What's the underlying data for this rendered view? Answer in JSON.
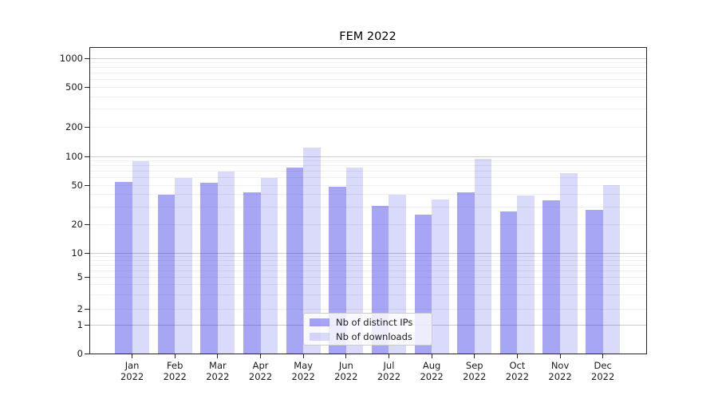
{
  "title": "FEM 2022",
  "legend": {
    "items": [
      {
        "label": "Nb of distinct IPs",
        "color": "rgba(22,22,230,0.38)"
      },
      {
        "label": "Nb of downloads",
        "color": "rgba(22,22,230,0.16)"
      }
    ],
    "position": "lower center"
  },
  "chart_data": {
    "type": "bar",
    "title": "FEM 2022",
    "categories": [
      "Jan 2022",
      "Feb 2022",
      "Mar 2022",
      "Apr 2022",
      "May 2022",
      "Jun 2022",
      "Jul 2022",
      "Aug 2022",
      "Sep 2022",
      "Oct 2022",
      "Nov 2022",
      "Dec 2022"
    ],
    "x_tick_months": [
      "Jan",
      "Feb",
      "Mar",
      "Apr",
      "May",
      "Jun",
      "Jul",
      "Aug",
      "Sep",
      "Oct",
      "Nov",
      "Dec"
    ],
    "x_tick_year": "2022",
    "series": [
      {
        "name": "Nb of distinct IPs",
        "color": "rgba(22,22,230,0.38)",
        "values": [
          54,
          40,
          53,
          42,
          76,
          48,
          31,
          25,
          42,
          27,
          35,
          28
        ]
      },
      {
        "name": "Nb of downloads",
        "color": "rgba(22,22,230,0.16)",
        "values": [
          89,
          59,
          70,
          60,
          124,
          76,
          40,
          36,
          94,
          39,
          67,
          50
        ]
      }
    ],
    "xlabel": "",
    "ylabel": "",
    "yscale": "log-like (symlog with 0 at baseline)",
    "yticks": [
      0,
      1,
      2,
      5,
      10,
      20,
      50,
      100,
      200,
      500,
      1000
    ],
    "ylim": [
      0,
      1280
    ],
    "grid": "both (major decade lines darker, minor log lines faint)",
    "legend_position": "lower center"
  },
  "colors": {
    "bar_dark": "rgba(22,22,230,0.38)",
    "bar_light": "rgba(22,22,230,0.16)",
    "grid_major": "#cccccc",
    "grid_minor": "#efefef",
    "spine": "#262626",
    "background": "#ffffff"
  }
}
